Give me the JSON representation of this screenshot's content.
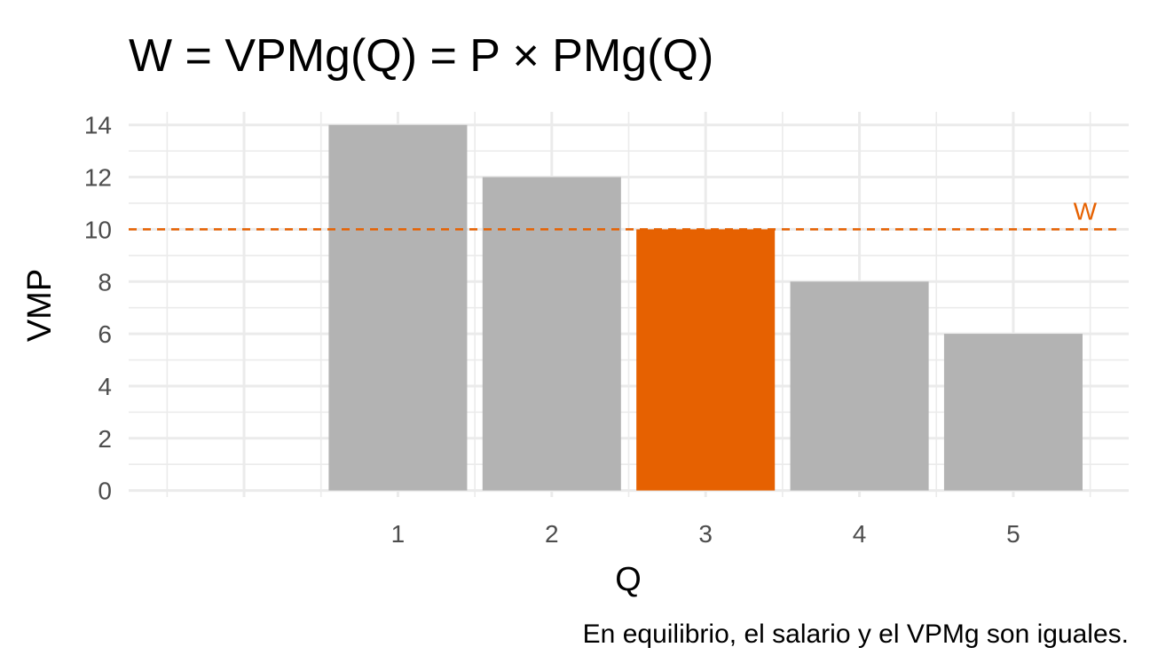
{
  "chart_data": {
    "type": "bar",
    "title": "W =  VPMg(Q) = P × PMg(Q)",
    "xlabel": "Q",
    "ylabel": "VMP",
    "caption": "En equilibrio, el salario y el VPMg son iguales.",
    "categories": [
      "1",
      "2",
      "3",
      "4",
      "5"
    ],
    "values": [
      14,
      12,
      10,
      8,
      6
    ],
    "highlight_index": 2,
    "xlim": [
      -0.75,
      5.75
    ],
    "ylim": [
      -0.25,
      14.5
    ],
    "yticks": [
      "0",
      "2",
      "4",
      "6",
      "8",
      "10",
      "12",
      "14"
    ],
    "grid": true,
    "reference_line": {
      "value": 10,
      "label": "W",
      "style": "dashed"
    },
    "colors": {
      "bar": "#b3b3b3",
      "highlight": "#e66101",
      "line": "#e66101",
      "grid": "#ebebeb"
    }
  }
}
